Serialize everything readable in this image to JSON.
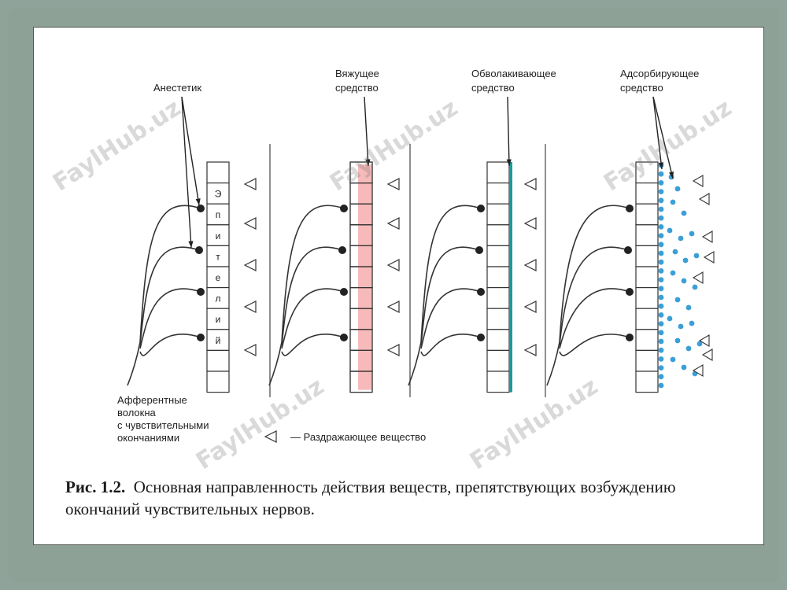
{
  "labels": {
    "anesthetic": "Анестетик",
    "astringent_1": "Вяжущее",
    "astringent_2": "средство",
    "enveloping_1": "Обволакивающее",
    "enveloping_2": "средство",
    "adsorbing_1": "Адсорбирующее",
    "adsorbing_2": "средство",
    "afferent_1": "Афферентные",
    "afferent_2": "волокна",
    "afferent_3": "с чувствительными",
    "afferent_4": "окончаниями",
    "legend": "— Раздражающее вещество"
  },
  "epithelium_letters": [
    "Э",
    "п",
    "и",
    "т",
    "е",
    "л",
    "и",
    "й"
  ],
  "caption": {
    "prefix": "Рис. 1.2.",
    "text": "Основная направленность действия веществ, препятствующих возбуждению окончаний чувствительных нервов."
  },
  "watermark": "FaylHub.uz",
  "colors": {
    "astringent_fill": "#f4a3a3",
    "enveloping_line": "#1a9a9a",
    "adsorbent_dots": "#3a9fd8",
    "background": "#8fa39a"
  }
}
